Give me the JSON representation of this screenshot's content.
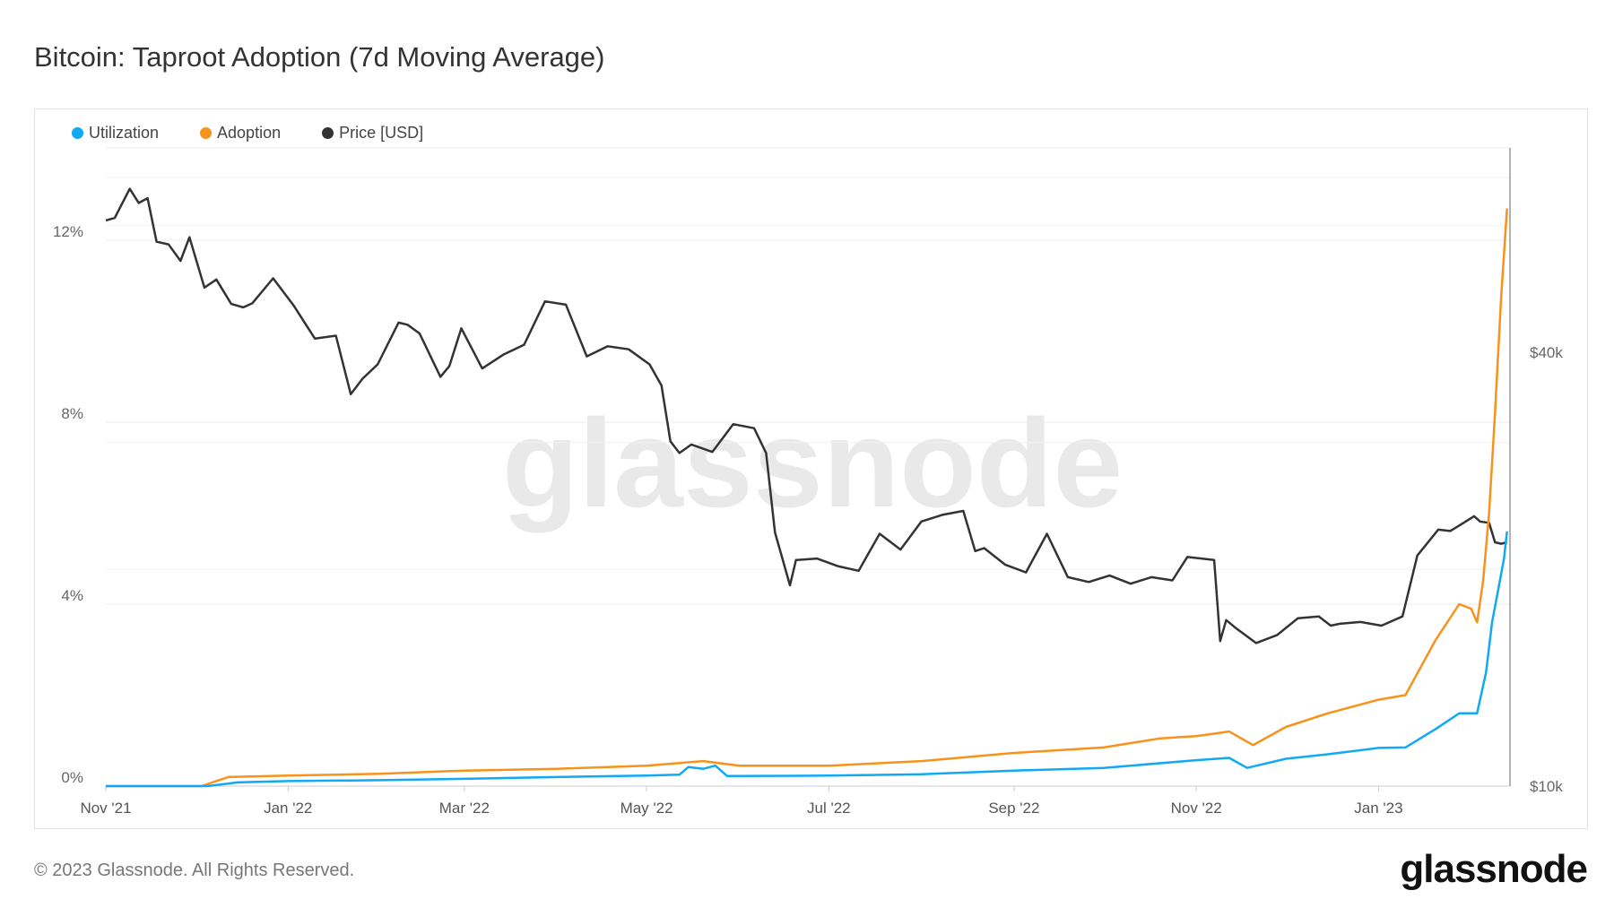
{
  "title": "Bitcoin: Taproot Adoption (7d Moving Average)",
  "footer": "© 2023 Glassnode. All Rights Reserved.",
  "logo": "glassnode",
  "watermark": "glassnode",
  "legend": [
    {
      "label": "Utilization",
      "color": "#0fa9f5"
    },
    {
      "label": "Adoption",
      "color": "#f7931a"
    },
    {
      "label": "Price [USD]",
      "color": "#333333"
    }
  ],
  "chart_data": {
    "type": "line",
    "title": "Bitcoin: Taproot Adoption (7d Moving Average)",
    "x_range": [
      "2021-11-01",
      "2023-02-14"
    ],
    "x_ticks": [
      {
        "date": "2021-11-01",
        "label": "Nov '21"
      },
      {
        "date": "2022-01-01",
        "label": "Jan '22"
      },
      {
        "date": "2022-03-01",
        "label": "Mar '22"
      },
      {
        "date": "2022-05-01",
        "label": "May '22"
      },
      {
        "date": "2022-07-01",
        "label": "Jul '22"
      },
      {
        "date": "2022-09-01",
        "label": "Sep '22"
      },
      {
        "date": "2022-11-01",
        "label": "Nov '22"
      },
      {
        "date": "2023-01-01",
        "label": "Jan '23"
      }
    ],
    "y_left": {
      "unit": "%",
      "range": [
        0,
        14
      ],
      "ticks": [
        {
          "v": 0,
          "label": "0%"
        },
        {
          "v": 4,
          "label": "4%"
        },
        {
          "v": 8,
          "label": "8%"
        },
        {
          "v": 12,
          "label": "12%"
        }
      ]
    },
    "y_right": {
      "scale": "log",
      "range": [
        10000,
        79000
      ],
      "ticks": [
        {
          "v": 10000,
          "label": "$10k"
        },
        {
          "v": 40000,
          "label": "$40k"
        }
      ]
    },
    "grid": true,
    "legend_position": "top-left",
    "series": [
      {
        "name": "Utilization",
        "axis": "left",
        "color": "#0fa9f5",
        "points": [
          [
            "2021-11-01",
            0
          ],
          [
            "2021-12-05",
            0
          ],
          [
            "2021-12-15",
            0.08
          ],
          [
            "2022-01-01",
            0.11
          ],
          [
            "2022-02-01",
            0.13
          ],
          [
            "2022-03-01",
            0.16
          ],
          [
            "2022-04-01",
            0.2
          ],
          [
            "2022-05-01",
            0.23
          ],
          [
            "2022-05-12",
            0.25
          ],
          [
            "2022-05-15",
            0.42
          ],
          [
            "2022-05-20",
            0.38
          ],
          [
            "2022-05-24",
            0.45
          ],
          [
            "2022-05-28",
            0.22
          ],
          [
            "2022-07-01",
            0.23
          ],
          [
            "2022-08-01",
            0.26
          ],
          [
            "2022-09-01",
            0.34
          ],
          [
            "2022-10-01",
            0.4
          ],
          [
            "2022-11-01",
            0.57
          ],
          [
            "2022-11-12",
            0.62
          ],
          [
            "2022-11-18",
            0.4
          ],
          [
            "2022-12-01",
            0.6
          ],
          [
            "2022-12-15",
            0.7
          ],
          [
            "2023-01-01",
            0.84
          ],
          [
            "2023-01-10",
            0.85
          ],
          [
            "2023-01-20",
            1.25
          ],
          [
            "2023-01-28",
            1.6
          ],
          [
            "2023-02-03",
            1.6
          ],
          [
            "2023-02-06",
            2.5
          ],
          [
            "2023-02-08",
            3.6
          ],
          [
            "2023-02-10",
            4.3
          ],
          [
            "2023-02-12",
            5.0
          ],
          [
            "2023-02-13",
            5.6
          ]
        ]
      },
      {
        "name": "Adoption",
        "axis": "left",
        "color": "#f7931a",
        "points": [
          [
            "2021-11-01",
            0
          ],
          [
            "2021-12-03",
            0
          ],
          [
            "2021-12-12",
            0.2
          ],
          [
            "2022-01-01",
            0.23
          ],
          [
            "2022-02-01",
            0.27
          ],
          [
            "2022-03-01",
            0.34
          ],
          [
            "2022-04-01",
            0.38
          ],
          [
            "2022-05-01",
            0.45
          ],
          [
            "2022-05-20",
            0.55
          ],
          [
            "2022-06-01",
            0.45
          ],
          [
            "2022-07-01",
            0.45
          ],
          [
            "2022-08-01",
            0.55
          ],
          [
            "2022-09-01",
            0.73
          ],
          [
            "2022-10-01",
            0.85
          ],
          [
            "2022-10-20",
            1.05
          ],
          [
            "2022-11-01",
            1.1
          ],
          [
            "2022-11-12",
            1.2
          ],
          [
            "2022-11-20",
            0.9
          ],
          [
            "2022-12-01",
            1.3
          ],
          [
            "2022-12-15",
            1.6
          ],
          [
            "2023-01-01",
            1.9
          ],
          [
            "2023-01-10",
            2.0
          ],
          [
            "2023-01-20",
            3.2
          ],
          [
            "2023-01-28",
            4.0
          ],
          [
            "2023-02-01",
            3.9
          ],
          [
            "2023-02-03",
            3.6
          ],
          [
            "2023-02-05",
            4.5
          ],
          [
            "2023-02-07",
            6.0
          ],
          [
            "2023-02-09",
            8.2
          ],
          [
            "2023-02-11",
            10.7
          ],
          [
            "2023-02-13",
            12.7
          ]
        ]
      },
      {
        "name": "Price [USD]",
        "axis": "right",
        "color": "#333333",
        "points": [
          [
            "2021-11-01",
            61000
          ],
          [
            "2021-11-04",
            61500
          ],
          [
            "2021-11-09",
            67500
          ],
          [
            "2021-11-12",
            64500
          ],
          [
            "2021-11-15",
            65500
          ],
          [
            "2021-11-18",
            57000
          ],
          [
            "2021-11-22",
            56500
          ],
          [
            "2021-11-26",
            53600
          ],
          [
            "2021-11-29",
            57800
          ],
          [
            "2021-12-04",
            49200
          ],
          [
            "2021-12-08",
            50500
          ],
          [
            "2021-12-13",
            46700
          ],
          [
            "2021-12-17",
            46200
          ],
          [
            "2021-12-20",
            46800
          ],
          [
            "2021-12-27",
            50700
          ],
          [
            "2022-01-03",
            46400
          ],
          [
            "2022-01-10",
            41800
          ],
          [
            "2022-01-17",
            42200
          ],
          [
            "2022-01-22",
            35000
          ],
          [
            "2022-01-26",
            36800
          ],
          [
            "2022-01-31",
            38500
          ],
          [
            "2022-02-07",
            44000
          ],
          [
            "2022-02-10",
            43700
          ],
          [
            "2022-02-14",
            42500
          ],
          [
            "2022-02-21",
            37000
          ],
          [
            "2022-02-24",
            38300
          ],
          [
            "2022-02-28",
            43200
          ],
          [
            "2022-03-07",
            38000
          ],
          [
            "2022-03-14",
            39700
          ],
          [
            "2022-03-21",
            41000
          ],
          [
            "2022-03-28",
            47100
          ],
          [
            "2022-04-04",
            46600
          ],
          [
            "2022-04-11",
            39500
          ],
          [
            "2022-04-18",
            40800
          ],
          [
            "2022-04-25",
            40400
          ],
          [
            "2022-05-02",
            38500
          ],
          [
            "2022-05-06",
            36000
          ],
          [
            "2022-05-09",
            30100
          ],
          [
            "2022-05-12",
            29000
          ],
          [
            "2022-05-16",
            29800
          ],
          [
            "2022-05-23",
            29100
          ],
          [
            "2022-05-30",
            31800
          ],
          [
            "2022-06-06",
            31400
          ],
          [
            "2022-06-10",
            29000
          ],
          [
            "2022-06-13",
            22500
          ],
          [
            "2022-06-18",
            19000
          ],
          [
            "2022-06-20",
            20600
          ],
          [
            "2022-06-27",
            20700
          ],
          [
            "2022-07-04",
            20200
          ],
          [
            "2022-07-11",
            19900
          ],
          [
            "2022-07-18",
            22400
          ],
          [
            "2022-07-25",
            21300
          ],
          [
            "2022-08-01",
            23300
          ],
          [
            "2022-08-08",
            23800
          ],
          [
            "2022-08-15",
            24100
          ],
          [
            "2022-08-19",
            21200
          ],
          [
            "2022-08-22",
            21400
          ],
          [
            "2022-08-29",
            20300
          ],
          [
            "2022-09-05",
            19800
          ],
          [
            "2022-09-12",
            22400
          ],
          [
            "2022-09-19",
            19500
          ],
          [
            "2022-09-26",
            19200
          ],
          [
            "2022-10-03",
            19600
          ],
          [
            "2022-10-10",
            19100
          ],
          [
            "2022-10-17",
            19500
          ],
          [
            "2022-10-24",
            19300
          ],
          [
            "2022-10-29",
            20800
          ],
          [
            "2022-11-07",
            20600
          ],
          [
            "2022-11-09",
            15900
          ],
          [
            "2022-11-11",
            17000
          ],
          [
            "2022-11-14",
            16600
          ],
          [
            "2022-11-21",
            15800
          ],
          [
            "2022-11-28",
            16200
          ],
          [
            "2022-12-05",
            17100
          ],
          [
            "2022-12-12",
            17200
          ],
          [
            "2022-12-16",
            16700
          ],
          [
            "2022-12-19",
            16800
          ],
          [
            "2022-12-26",
            16900
          ],
          [
            "2023-01-02",
            16700
          ],
          [
            "2023-01-09",
            17200
          ],
          [
            "2023-01-14",
            20900
          ],
          [
            "2023-01-21",
            22700
          ],
          [
            "2023-01-25",
            22600
          ],
          [
            "2023-01-28",
            23000
          ],
          [
            "2023-02-02",
            23700
          ],
          [
            "2023-02-04",
            23300
          ],
          [
            "2023-02-07",
            23200
          ],
          [
            "2023-02-09",
            21800
          ],
          [
            "2023-02-11",
            21700
          ],
          [
            "2023-02-13",
            21800
          ]
        ]
      }
    ]
  }
}
